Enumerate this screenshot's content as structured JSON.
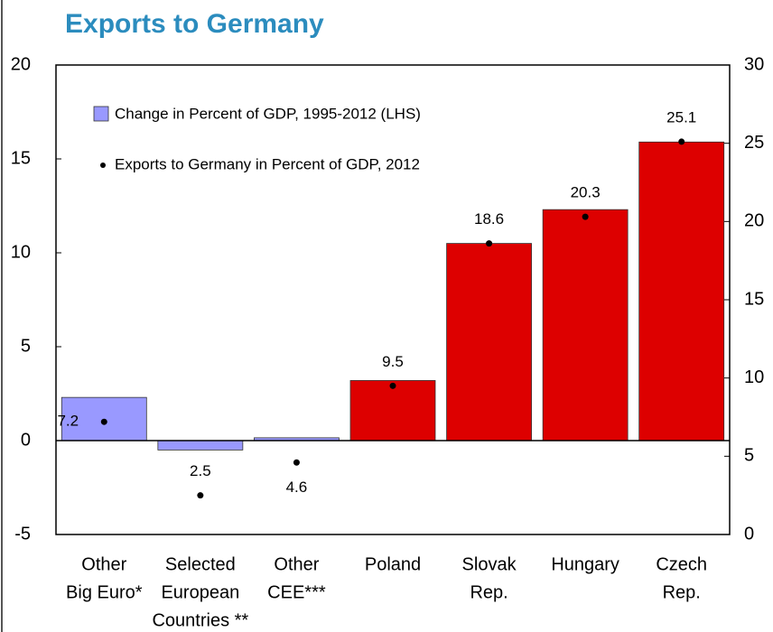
{
  "chart_data": {
    "type": "bar",
    "title": "Exports to Germany",
    "categories": [
      [
        "Other",
        "Big Euro*"
      ],
      [
        "Selected",
        "European",
        "Countries **"
      ],
      [
        "Other",
        "CEE***"
      ],
      [
        "Poland"
      ],
      [
        "Slovak",
        "Rep."
      ],
      [
        "Hungary"
      ],
      [
        "Czech",
        "Rep."
      ]
    ],
    "series": [
      {
        "name": "Change in Percent of GDP, 1995-2012 (LHS)",
        "color": "#9999ff",
        "colors": [
          "#9999ff",
          "#9999ff",
          "#9999ff",
          "#dd0000",
          "#dd0000",
          "#dd0000",
          "#dd0000"
        ],
        "values": [
          2.3,
          -0.5,
          0.15,
          3.2,
          10.5,
          12.3,
          15.9
        ]
      },
      {
        "name": "Exports to Germany in Percent of GDP, 2012",
        "color": "#000000",
        "axis": "y2",
        "values": [
          7.2,
          2.5,
          4.6,
          9.5,
          18.6,
          20.3,
          25.1
        ]
      }
    ],
    "ylim": [
      -5,
      20
    ],
    "yticks": [
      -5,
      0,
      5,
      10,
      15,
      20
    ],
    "y2lim": [
      0,
      30
    ],
    "y2ticks": [
      0,
      5,
      10,
      15,
      20,
      25,
      30
    ],
    "grid": false
  }
}
